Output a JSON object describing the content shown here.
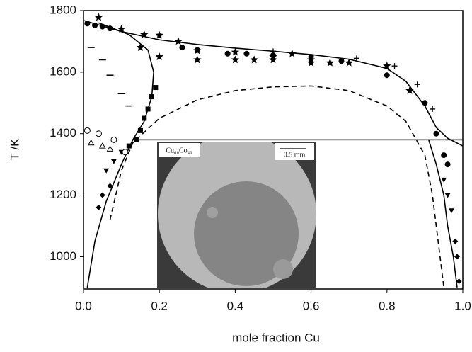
{
  "chart_data": {
    "type": "line",
    "x_label": "mole fraction Cu",
    "y_label": "T /K",
    "xlim": [
      0,
      1
    ],
    "ylim": [
      895,
      1800
    ],
    "xticks": [
      {
        "value": 0,
        "label": "0.0"
      },
      0.2,
      0.4,
      0.6,
      0.8,
      {
        "value": 1,
        "label": "1.0"
      }
    ],
    "yticks": [
      1000,
      1200,
      1400,
      1600,
      1800
    ],
    "annotations": [
      "Cu₆₀Co₄₀",
      "0.5 mm"
    ],
    "series": [
      {
        "mode": "line",
        "style": "solid",
        "color": "#000",
        "x": [
          0,
          0.1,
          0.2,
          0.3,
          0.4,
          0.5,
          0.6,
          0.7,
          0.8,
          0.85,
          0.9,
          0.93,
          0.96,
          1.0
        ],
        "y": [
          1768,
          1732,
          1705,
          1690,
          1678,
          1668,
          1657,
          1642,
          1612,
          1570,
          1490,
          1420,
          1385,
          1360
        ]
      },
      {
        "mode": "line",
        "style": "dashed",
        "color": "#000",
        "x": [
          0.07,
          0.1,
          0.13,
          0.2,
          0.3,
          0.4,
          0.5,
          0.6,
          0.7,
          0.8,
          0.85,
          0.9,
          0.92,
          0.94,
          0.95
        ],
        "y": [
          1120,
          1280,
          1370,
          1450,
          1510,
          1540,
          1552,
          1555,
          1540,
          1490,
          1440,
          1330,
          1200,
          1000,
          900
        ]
      },
      {
        "mode": "line",
        "style": "solid",
        "color": "#000",
        "x": [
          0.04,
          0.12,
          0.17,
          0.185,
          0.18,
          0.16,
          0.13,
          0.1,
          0.06,
          0.03,
          0.01
        ],
        "y": [
          1760,
          1722,
          1672,
          1600,
          1520,
          1440,
          1380,
          1300,
          1180,
          1050,
          900
        ]
      },
      {
        "mode": "line",
        "style": "solid",
        "color": "#000",
        "x": [
          0.91,
          0.93,
          0.95,
          0.96,
          0.975,
          0.985
        ],
        "y": [
          1380,
          1300,
          1200,
          1100,
          1000,
          900
        ]
      },
      {
        "mode": "line",
        "style": "solid",
        "color": "#000",
        "x": [
          0.13,
          1.0
        ],
        "y": [
          1380,
          1380
        ]
      },
      {
        "mode": "marker",
        "marker": "star",
        "color": "#000",
        "x": [
          0.04,
          0.1,
          0.16,
          0.2,
          0.25,
          0.3,
          0.4,
          0.45,
          0.5,
          0.55,
          0.6,
          0.65,
          0.8,
          0.86,
          0.15,
          0.2,
          0.3,
          0.4,
          0.5,
          0.6,
          0.7
        ],
        "y": [
          1778,
          1740,
          1722,
          1720,
          1700,
          1670,
          1665,
          1640,
          1650,
          1660,
          1640,
          1630,
          1620,
          1540,
          1680,
          1650,
          1640,
          1640,
          1640,
          1630,
          1630
        ]
      },
      {
        "mode": "marker",
        "marker": "circle",
        "color": "#000",
        "x": [
          0.01,
          0.03,
          0.05,
          0.07,
          0.26,
          0.3,
          0.38,
          0.43,
          0.5,
          0.6,
          0.68,
          0.8,
          0.9,
          0.93,
          0.95,
          0.96
        ],
        "y": [
          1758,
          1752,
          1748,
          1742,
          1680,
          1672,
          1660,
          1660,
          1655,
          1650,
          1636,
          1590,
          1500,
          1400,
          1330,
          1300
        ]
      },
      {
        "mode": "marker",
        "marker": "square",
        "color": "#000",
        "x": [
          0.19,
          0.18,
          0.17,
          0.16,
          0.15,
          0.14,
          0.12
        ],
        "y": [
          1550,
          1520,
          1480,
          1450,
          1410,
          1380,
          1360
        ]
      },
      {
        "mode": "marker",
        "marker": "triangle-down",
        "color": "#000",
        "x": [
          0.06,
          0.08,
          0.1,
          0.95,
          0.96,
          0.97
        ],
        "y": [
          1280,
          1310,
          1340,
          1250,
          1200,
          1150
        ]
      },
      {
        "mode": "marker",
        "marker": "diamond",
        "color": "#000",
        "x": [
          0.04,
          0.05,
          0.07,
          0.98,
          0.985,
          0.99
        ],
        "y": [
          1160,
          1200,
          1230,
          1050,
          1000,
          920
        ]
      },
      {
        "mode": "marker",
        "marker": "open-circle",
        "color": "#000",
        "x": [
          0.01,
          0.04,
          0.08,
          0.11
        ],
        "y": [
          1410,
          1400,
          1380,
          1340
        ]
      },
      {
        "mode": "marker",
        "marker": "open-triangle",
        "color": "#000",
        "x": [
          0.02,
          0.05,
          0.07
        ],
        "y": [
          1370,
          1360,
          1350
        ]
      },
      {
        "mode": "marker",
        "marker": "dash",
        "color": "#000",
        "x": [
          0.02,
          0.05,
          0.07,
          0.1,
          0.12
        ],
        "y": [
          1680,
          1640,
          1590,
          1530,
          1490
        ]
      },
      {
        "mode": "marker",
        "marker": "plus",
        "color": "#000",
        "x": [
          0.2,
          0.5,
          0.72,
          0.82,
          0.88,
          0.92
        ],
        "y": [
          1720,
          1668,
          1645,
          1620,
          1560,
          1480
        ]
      }
    ]
  }
}
